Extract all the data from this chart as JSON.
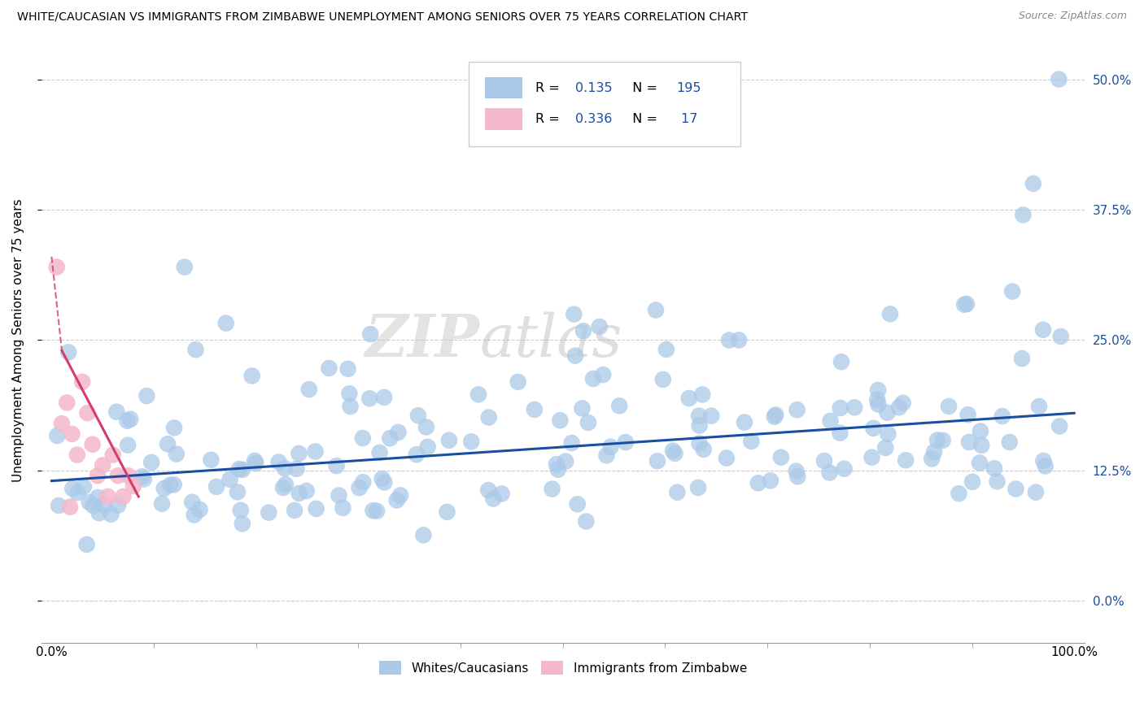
{
  "title": "WHITE/CAUCASIAN VS IMMIGRANTS FROM ZIMBABWE UNEMPLOYMENT AMONG SENIORS OVER 75 YEARS CORRELATION CHART",
  "source": "Source: ZipAtlas.com",
  "ylabel": "Unemployment Among Seniors over 75 years",
  "ytick_vals": [
    0.0,
    12.5,
    25.0,
    37.5,
    50.0
  ],
  "blue_R": "0.135",
  "blue_N": "195",
  "pink_R": "0.336",
  "pink_N": " 17",
  "blue_color": "#aac9e8",
  "pink_color": "#f5b8cb",
  "blue_line_color": "#1a4fa0",
  "pink_line_color": "#d63a6e",
  "watermark_zip": "ZIP",
  "watermark_atlas": "atlas",
  "legend_label_blue": "Whites/Caucasians",
  "legend_label_pink": "Immigrants from Zimbabwe",
  "blue_label_color": "#1a4fa0",
  "text_color": "#333333"
}
